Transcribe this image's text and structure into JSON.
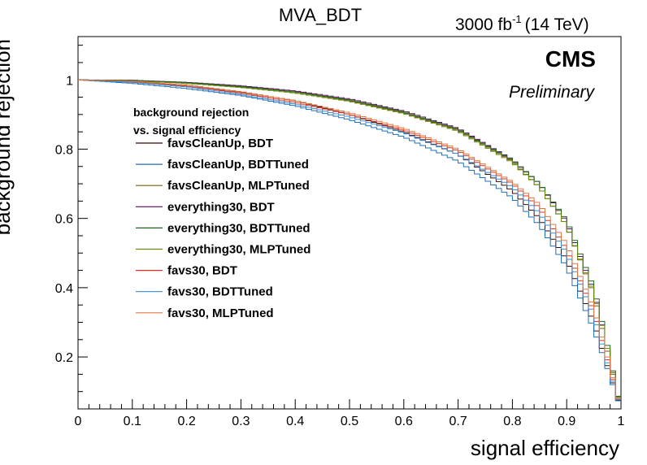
{
  "chart_data": {
    "type": "line",
    "title": "MVA_BDT",
    "subtitle_lumi": "3000 fb",
    "subtitle_lumi_exp": "-1",
    "subtitle_energy": "(14 TeV)",
    "experiment": "CMS",
    "status": "Preliminary",
    "xlabel": "signal efficiency",
    "ylabel": "background rejection",
    "xlim": [
      0,
      1
    ],
    "ylim": [
      0.05,
      1.125
    ],
    "x_ticks": [
      "0",
      "0.1",
      "0.2",
      "0.3",
      "0.4",
      "0.5",
      "0.6",
      "0.7",
      "0.8",
      "0.9",
      "1"
    ],
    "y_ticks": [
      "0.2",
      "0.4",
      "0.6",
      "0.8",
      "1"
    ],
    "legend_title_line1": "background rejection",
    "legend_title_line2": "vs. signal efficiency",
    "legend_placement": "left",
    "series": [
      {
        "name": "favsCleanUp, BDT",
        "color": "#3a0a0a",
        "points": [
          [
            0.0,
            1.0
          ],
          [
            0.1,
            0.995
          ],
          [
            0.2,
            0.985
          ],
          [
            0.3,
            0.965
          ],
          [
            0.4,
            0.94
          ],
          [
            0.5,
            0.9
          ],
          [
            0.6,
            0.85
          ],
          [
            0.7,
            0.785
          ],
          [
            0.8,
            0.68
          ],
          [
            0.85,
            0.6
          ],
          [
            0.9,
            0.48
          ],
          [
            0.95,
            0.3
          ],
          [
            0.97,
            0.2
          ],
          [
            1.0,
            0.05
          ]
        ]
      },
      {
        "name": "favsCleanUp, BDTTuned",
        "color": "#1f6fb4",
        "points": [
          [
            0.0,
            1.0
          ],
          [
            0.1,
            0.99
          ],
          [
            0.2,
            0.975
          ],
          [
            0.3,
            0.955
          ],
          [
            0.4,
            0.925
          ],
          [
            0.5,
            0.885
          ],
          [
            0.6,
            0.835
          ],
          [
            0.7,
            0.765
          ],
          [
            0.8,
            0.66
          ],
          [
            0.85,
            0.58
          ],
          [
            0.9,
            0.46
          ],
          [
            0.95,
            0.28
          ],
          [
            0.97,
            0.19
          ],
          [
            1.0,
            0.05
          ]
        ]
      },
      {
        "name": "favsCleanUp, MLPTuned",
        "color": "#7a5a0a",
        "points": [
          [
            0.0,
            1.0
          ],
          [
            0.1,
            0.998
          ],
          [
            0.2,
            0.99
          ],
          [
            0.3,
            0.98
          ],
          [
            0.4,
            0.965
          ],
          [
            0.5,
            0.94
          ],
          [
            0.6,
            0.905
          ],
          [
            0.7,
            0.855
          ],
          [
            0.8,
            0.765
          ],
          [
            0.85,
            0.69
          ],
          [
            0.9,
            0.58
          ],
          [
            0.95,
            0.38
          ],
          [
            0.97,
            0.25
          ],
          [
            1.0,
            0.05
          ]
        ]
      },
      {
        "name": "everything30, BDT",
        "color": "#5a0a5a",
        "points": [
          [
            0.0,
            1.0
          ],
          [
            0.1,
            0.999
          ],
          [
            0.2,
            0.993
          ],
          [
            0.3,
            0.983
          ],
          [
            0.4,
            0.968
          ],
          [
            0.5,
            0.945
          ],
          [
            0.6,
            0.91
          ],
          [
            0.7,
            0.86
          ],
          [
            0.8,
            0.77
          ],
          [
            0.85,
            0.7
          ],
          [
            0.9,
            0.59
          ],
          [
            0.95,
            0.39
          ],
          [
            0.97,
            0.26
          ],
          [
            1.0,
            0.05
          ]
        ]
      },
      {
        "name": "everything30, BDTTuned",
        "color": "#1a6a1a",
        "points": [
          [
            0.0,
            1.0
          ],
          [
            0.1,
            0.998
          ],
          [
            0.2,
            0.992
          ],
          [
            0.3,
            0.981
          ],
          [
            0.4,
            0.965
          ],
          [
            0.5,
            0.942
          ],
          [
            0.6,
            0.907
          ],
          [
            0.7,
            0.857
          ],
          [
            0.8,
            0.768
          ],
          [
            0.85,
            0.7
          ],
          [
            0.9,
            0.595
          ],
          [
            0.95,
            0.4
          ],
          [
            0.97,
            0.27
          ],
          [
            1.0,
            0.05
          ]
        ]
      },
      {
        "name": "everything30, MLPTuned",
        "color": "#6a8a10",
        "points": [
          [
            0.0,
            1.0
          ],
          [
            0.1,
            0.997
          ],
          [
            0.2,
            0.99
          ],
          [
            0.3,
            0.978
          ],
          [
            0.4,
            0.962
          ],
          [
            0.5,
            0.938
          ],
          [
            0.6,
            0.903
          ],
          [
            0.7,
            0.852
          ],
          [
            0.8,
            0.762
          ],
          [
            0.85,
            0.69
          ],
          [
            0.9,
            0.58
          ],
          [
            0.95,
            0.385
          ],
          [
            0.97,
            0.26
          ],
          [
            1.0,
            0.05
          ]
        ]
      },
      {
        "name": "favs30, BDT",
        "color": "#e03020",
        "points": [
          [
            0.0,
            1.0
          ],
          [
            0.1,
            0.995
          ],
          [
            0.2,
            0.982
          ],
          [
            0.3,
            0.962
          ],
          [
            0.4,
            0.935
          ],
          [
            0.5,
            0.9
          ],
          [
            0.6,
            0.855
          ],
          [
            0.7,
            0.795
          ],
          [
            0.8,
            0.7
          ],
          [
            0.85,
            0.63
          ],
          [
            0.9,
            0.51
          ],
          [
            0.95,
            0.33
          ],
          [
            0.97,
            0.22
          ],
          [
            1.0,
            0.05
          ]
        ]
      },
      {
        "name": "favs30, BDTTuned",
        "color": "#3a8ad0",
        "points": [
          [
            0.0,
            1.0
          ],
          [
            0.1,
            0.993
          ],
          [
            0.2,
            0.98
          ],
          [
            0.3,
            0.958
          ],
          [
            0.4,
            0.93
          ],
          [
            0.5,
            0.893
          ],
          [
            0.6,
            0.847
          ],
          [
            0.7,
            0.785
          ],
          [
            0.8,
            0.69
          ],
          [
            0.85,
            0.615
          ],
          [
            0.9,
            0.5
          ],
          [
            0.95,
            0.32
          ],
          [
            0.97,
            0.21
          ],
          [
            1.0,
            0.05
          ]
        ]
      },
      {
        "name": "favs30, MLPTuned",
        "color": "#e07a40",
        "points": [
          [
            0.0,
            1.0
          ],
          [
            0.1,
            0.996
          ],
          [
            0.2,
            0.985
          ],
          [
            0.3,
            0.966
          ],
          [
            0.4,
            0.94
          ],
          [
            0.5,
            0.905
          ],
          [
            0.6,
            0.86
          ],
          [
            0.7,
            0.8
          ],
          [
            0.8,
            0.705
          ],
          [
            0.85,
            0.64
          ],
          [
            0.9,
            0.525
          ],
          [
            0.95,
            0.34
          ],
          [
            0.97,
            0.23
          ],
          [
            1.0,
            0.05
          ]
        ]
      }
    ]
  }
}
